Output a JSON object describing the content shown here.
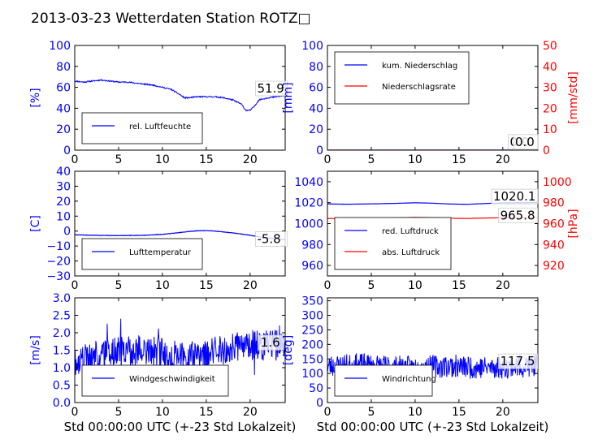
{
  "figure": {
    "title": "2013-03-23 Wetterdaten Station ROTZ□",
    "colors": {
      "primary": "#0000ff",
      "secondary": "#ff0000",
      "text": "#000000",
      "frame": "#000000"
    }
  },
  "chart_data": [
    {
      "id": "humidity",
      "type": "line",
      "x": [
        0,
        1,
        2,
        3,
        4,
        5,
        6,
        7,
        8,
        9,
        10,
        11,
        12,
        12.5,
        13,
        14,
        15,
        16,
        17,
        18,
        19,
        19.5,
        20,
        20.5,
        21,
        22,
        23,
        24
      ],
      "xlim": [
        0,
        24
      ],
      "xticks": [
        "0",
        "5",
        "10",
        "15",
        "20"
      ],
      "xlabel": "",
      "left_axis": {
        "label": "[%]",
        "ylim": [
          0,
          100
        ],
        "ticks": [
          "0",
          "20",
          "40",
          "60",
          "80",
          "100"
        ]
      },
      "right_axis": null,
      "series": [
        {
          "name": "rel. Luftfeuchte",
          "axis": "left",
          "color": "#0000ff",
          "values": [
            66,
            65,
            66,
            67,
            66,
            65,
            65,
            64,
            63,
            62,
            60,
            58,
            53,
            50,
            50,
            51,
            51,
            51,
            50,
            48,
            44,
            38,
            38,
            42,
            48,
            50,
            51,
            52
          ],
          "last_label": "51.9",
          "label_pos": {
            "x": 20.8,
            "y": 55
          }
        }
      ],
      "legend": {
        "placement": "lower-left"
      },
      "noise": 0.6,
      "seed": 11
    },
    {
      "id": "precip",
      "type": "line",
      "x": [
        0,
        24
      ],
      "xlim": [
        0,
        24
      ],
      "xticks": [
        "0",
        "5",
        "10",
        "15",
        "20"
      ],
      "xlabel": "",
      "left_axis": {
        "label": "[mm]",
        "ylim": [
          0,
          100
        ],
        "ticks": [
          "0",
          "20",
          "40",
          "60",
          "80",
          "100"
        ]
      },
      "right_axis": {
        "label": "[mm/std]",
        "ylim": [
          0,
          50
        ],
        "ticks": [
          "0",
          "10",
          "20",
          "30",
          "40",
          "50"
        ]
      },
      "series": [
        {
          "name": "kum. Niederschlag",
          "axis": "left",
          "color": "#0000ff",
          "values": [
            0,
            0
          ],
          "last_label": "0.0",
          "label_pos": {
            "x": 20.8,
            "y": 4
          }
        },
        {
          "name": "Niederschlagsrate",
          "axis": "right",
          "color": "#ff0000",
          "values": [
            0,
            0
          ],
          "last_label": "0.0",
          "label_pos": {
            "x": 21.4,
            "y": 2
          }
        }
      ],
      "legend": {
        "placement": "upper-left"
      },
      "noise": 0,
      "seed": 3
    },
    {
      "id": "temperature",
      "type": "line",
      "x": [
        0,
        2,
        4,
        6,
        8,
        10,
        12,
        13,
        14,
        15,
        16,
        17,
        18,
        19,
        20,
        21,
        22,
        23,
        24
      ],
      "xlim": [
        0,
        24
      ],
      "xticks": [
        "0",
        "5",
        "10",
        "15",
        "20"
      ],
      "xlabel": "",
      "left_axis": {
        "label": "[C]",
        "ylim": [
          -30,
          40
        ],
        "ticks": [
          "−30",
          "−20",
          "−10",
          "0",
          "10",
          "20",
          "30",
          "40"
        ]
      },
      "right_axis": null,
      "series": [
        {
          "name": "Lufttemperatur",
          "axis": "left",
          "color": "#0000ff",
          "values": [
            -2.5,
            -2.8,
            -3.0,
            -3.0,
            -2.8,
            -2.2,
            -1.0,
            -0.3,
            0.2,
            0.3,
            0.0,
            -0.6,
            -1.2,
            -2.0,
            -2.8,
            -3.8,
            -4.6,
            -5.3,
            -5.8
          ],
          "last_label": "-5.8",
          "label_pos": {
            "x": 20.8,
            "y": -8
          }
        }
      ],
      "legend": {
        "placement": "lower-left"
      },
      "noise": 0.15,
      "seed": 7
    },
    {
      "id": "pressure",
      "type": "line",
      "x": [
        0,
        2,
        4,
        6,
        8,
        10,
        12,
        14,
        16,
        18,
        20,
        22,
        24
      ],
      "xlim": [
        0,
        24
      ],
      "xticks": [
        "0",
        "5",
        "10",
        "15",
        "20"
      ],
      "xlabel": "",
      "left_axis": {
        "label": "",
        "ylim": [
          950,
          1050
        ],
        "ticks": [
          "960",
          "980",
          "1000",
          "1020",
          "1040"
        ]
      },
      "right_axis": {
        "label": "[hPa]",
        "ylim": [
          910,
          1010
        ],
        "ticks": [
          "920",
          "940",
          "960",
          "980",
          "1000"
        ]
      },
      "series": [
        {
          "name": "red. Luftdruck",
          "axis": "left",
          "color": "#0000ff",
          "values": [
            1018.8,
            1018.5,
            1018.7,
            1019.0,
            1019.4,
            1019.9,
            1019.5,
            1018.7,
            1018.4,
            1019.2,
            1019.8,
            1020.0,
            1020.1
          ],
          "last_label": "1020.1",
          "label_pos": {
            "x": 18.9,
            "y": 1022
          }
        },
        {
          "name": "abs. Luftdruck",
          "axis": "right",
          "color": "#ff0000",
          "values": [
            964.9,
            964.7,
            964.9,
            965.1,
            965.5,
            965.9,
            965.7,
            965.1,
            964.9,
            965.3,
            965.6,
            965.7,
            965.8
          ],
          "last_label": "965.8",
          "label_pos": {
            "x": 19.7,
            "y": 964
          }
        }
      ],
      "legend": {
        "placement": "lower-left"
      },
      "noise": 0.06,
      "seed": 5
    },
    {
      "id": "wind_speed",
      "type": "line",
      "x": [
        0,
        2,
        4,
        5,
        6,
        8,
        10,
        12,
        14,
        16,
        18,
        20,
        22,
        24
      ],
      "xlim": [
        0,
        24
      ],
      "xticks": [
        "0",
        "5",
        "10",
        "15",
        "20"
      ],
      "xlabel": "Std 00:00:00 UTC (+-23 Std Lokalzeit)",
      "left_axis": {
        "label": "[m/s]",
        "ylim": [
          0,
          3
        ],
        "ticks": [
          "0.0",
          "0.5",
          "1.0",
          "1.5",
          "2.0",
          "2.5",
          "3.0"
        ]
      },
      "right_axis": null,
      "series": [
        {
          "name": "Windgeschwindigkeit",
          "axis": "left",
          "color": "#0000ff",
          "values": [
            1.2,
            1.3,
            1.4,
            1.5,
            1.45,
            1.5,
            1.4,
            1.35,
            1.4,
            1.45,
            1.55,
            1.65,
            1.65,
            1.6
          ],
          "last_label": "1.6",
          "label_pos": {
            "x": 21.2,
            "y": 1.6
          }
        }
      ],
      "legend": {
        "placement": "lower-left"
      },
      "noise": 0.45,
      "seed": 19
    },
    {
      "id": "wind_direction",
      "type": "line",
      "x": [
        0,
        2,
        4,
        6,
        8,
        10,
        12,
        14,
        16,
        18,
        20,
        22,
        24
      ],
      "xlim": [
        0,
        24
      ],
      "xticks": [
        "0",
        "5",
        "10",
        "15",
        "20"
      ],
      "xlabel": "Std 00:00:00 UTC (+-23 Std Lokalzeit)",
      "left_axis": {
        "label": "[deg]",
        "ylim": [
          0,
          360
        ],
        "ticks": [
          "0",
          "50",
          "100",
          "150",
          "200",
          "250",
          "300",
          "350"
        ]
      },
      "right_axis": null,
      "series": [
        {
          "name": "Windrichtung",
          "axis": "left",
          "color": "#0000ff",
          "values": [
            125,
            128,
            130,
            126,
            122,
            120,
            124,
            126,
            122,
            120,
            123,
            125,
            127
          ],
          "last_label": "117.5",
          "label_pos": {
            "x": 19.7,
            "y": 128
          }
        }
      ],
      "legend": {
        "placement": "lower-left"
      },
      "noise": 40,
      "seed": 23
    }
  ]
}
